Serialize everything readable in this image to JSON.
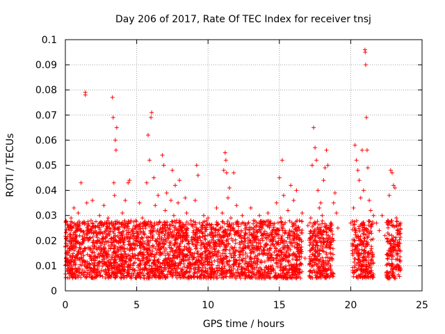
{
  "chart_data": {
    "type": "scatter",
    "title": "Day 206 of 2017, Rate Of TEC Index for receiver tnsj",
    "xlabel": "GPS time / hours",
    "ylabel": "ROTI / TECUs",
    "xlim": [
      0,
      25
    ],
    "ylim": [
      0,
      0.1
    ],
    "x_ticks": [
      "0",
      "5",
      "10",
      "15",
      "20",
      "25"
    ],
    "y_ticks": [
      "0",
      "0.01",
      "0.02",
      "0.03",
      "0.04",
      "0.05",
      "0.06",
      "0.07",
      "0.08",
      "0.09",
      "0.1"
    ],
    "grid": true,
    "marker": "+",
    "color": "#ff0000",
    "series": [
      {
        "points": [
          [
            0.05,
            0.021
          ],
          [
            0.1,
            0.012
          ],
          [
            0.2,
            0.025
          ],
          [
            0.3,
            0.017
          ],
          [
            0.4,
            0.029
          ],
          [
            0.5,
            0.014
          ],
          [
            0.6,
            0.033
          ],
          [
            0.7,
            0.019
          ],
          [
            0.8,
            0.024
          ],
          [
            0.9,
            0.031
          ],
          [
            1.0,
            0.022
          ],
          [
            1.1,
            0.043
          ],
          [
            1.2,
            0.027
          ],
          [
            1.3,
            0.016
          ],
          [
            1.4,
            0.079
          ],
          [
            1.4,
            0.078
          ],
          [
            1.5,
            0.035
          ],
          [
            1.6,
            0.02
          ],
          [
            1.8,
            0.028
          ],
          [
            1.9,
            0.036
          ],
          [
            2.0,
            0.023
          ],
          [
            2.1,
            0.013
          ],
          [
            2.3,
            0.026
          ],
          [
            2.4,
            0.03
          ],
          [
            2.5,
            0.018
          ],
          [
            2.7,
            0.034
          ],
          [
            2.8,
            0.021
          ],
          [
            2.9,
            0.015
          ],
          [
            3.0,
            0.029
          ],
          [
            3.1,
            0.025
          ],
          [
            3.3,
            0.077
          ],
          [
            3.35,
            0.069
          ],
          [
            3.4,
            0.043
          ],
          [
            3.45,
            0.038
          ],
          [
            3.5,
            0.06
          ],
          [
            3.55,
            0.056
          ],
          [
            3.6,
            0.065
          ],
          [
            3.7,
            0.027
          ],
          [
            3.8,
            0.02
          ],
          [
            4.0,
            0.031
          ],
          [
            4.1,
            0.017
          ],
          [
            4.2,
            0.036
          ],
          [
            4.3,
            0.024
          ],
          [
            4.4,
            0.043
          ],
          [
            4.5,
            0.044
          ],
          [
            4.6,
            0.028
          ],
          [
            4.8,
            0.022
          ],
          [
            4.9,
            0.014
          ],
          [
            5.0,
            0.026
          ],
          [
            5.2,
            0.035
          ],
          [
            5.3,
            0.019
          ],
          [
            5.4,
            0.029
          ],
          [
            5.5,
            0.023
          ],
          [
            5.7,
            0.043
          ],
          [
            5.8,
            0.062
          ],
          [
            5.9,
            0.052
          ],
          [
            6.0,
            0.069
          ],
          [
            6.05,
            0.071
          ],
          [
            6.2,
            0.045
          ],
          [
            6.3,
            0.034
          ],
          [
            6.4,
            0.027
          ],
          [
            6.5,
            0.038
          ],
          [
            6.6,
            0.021
          ],
          [
            6.7,
            0.015
          ],
          [
            6.8,
            0.054
          ],
          [
            6.9,
            0.05
          ],
          [
            7.0,
            0.032
          ],
          [
            7.1,
            0.039
          ],
          [
            7.2,
            0.025
          ],
          [
            7.3,
            0.018
          ],
          [
            7.4,
            0.036
          ],
          [
            7.5,
            0.048
          ],
          [
            7.6,
            0.03
          ],
          [
            7.7,
            0.042
          ],
          [
            7.8,
            0.028
          ],
          [
            7.9,
            0.035
          ],
          [
            8.0,
            0.044
          ],
          [
            8.1,
            0.026
          ],
          [
            8.2,
            0.022
          ],
          [
            8.4,
            0.037
          ],
          [
            8.5,
            0.031
          ],
          [
            8.6,
            0.019
          ],
          [
            8.8,
            0.028
          ],
          [
            9.0,
            0.024
          ],
          [
            9.1,
            0.036
          ],
          [
            9.2,
            0.05
          ],
          [
            9.3,
            0.046
          ],
          [
            9.4,
            0.027
          ],
          [
            9.5,
            0.018
          ],
          [
            9.7,
            0.03
          ],
          [
            9.8,
            0.022
          ],
          [
            10.0,
            0.029
          ],
          [
            10.2,
            0.017
          ],
          [
            10.4,
            0.025
          ],
          [
            10.6,
            0.033
          ],
          [
            10.8,
            0.02
          ],
          [
            11.0,
            0.031
          ],
          [
            11.1,
            0.048
          ],
          [
            11.2,
            0.055
          ],
          [
            11.25,
            0.052
          ],
          [
            11.3,
            0.047
          ],
          [
            11.4,
            0.037
          ],
          [
            11.5,
            0.041
          ],
          [
            11.6,
            0.029
          ],
          [
            11.8,
            0.047
          ],
          [
            12.0,
            0.034
          ],
          [
            12.2,
            0.022
          ],
          [
            12.4,
            0.03
          ],
          [
            12.6,
            0.026
          ],
          [
            12.8,
            0.019
          ],
          [
            13.0,
            0.033
          ],
          [
            13.2,
            0.028
          ],
          [
            13.4,
            0.021
          ],
          [
            13.6,
            0.03
          ],
          [
            13.8,
            0.025
          ],
          [
            14.0,
            0.018
          ],
          [
            14.2,
            0.031
          ],
          [
            14.4,
            0.027
          ],
          [
            14.6,
            0.021
          ],
          [
            14.8,
            0.035
          ],
          [
            15.0,
            0.045
          ],
          [
            15.1,
            0.029
          ],
          [
            15.2,
            0.052
          ],
          [
            15.3,
            0.038
          ],
          [
            15.4,
            0.024
          ],
          [
            15.6,
            0.032
          ],
          [
            15.8,
            0.042
          ],
          [
            16.0,
            0.036
          ],
          [
            16.2,
            0.04
          ],
          [
            16.4,
            0.028
          ],
          [
            16.6,
            0.031
          ],
          [
            16.8,
            0.013
          ],
          [
            17.0,
            0.026
          ],
          [
            17.2,
            0.029
          ],
          [
            17.3,
            0.05
          ],
          [
            17.4,
            0.065
          ],
          [
            17.5,
            0.057
          ],
          [
            17.6,
            0.052
          ],
          [
            17.7,
            0.04
          ],
          [
            17.8,
            0.033
          ],
          [
            17.9,
            0.035
          ],
          [
            18.0,
            0.03
          ],
          [
            18.1,
            0.044
          ],
          [
            18.2,
            0.049
          ],
          [
            18.3,
            0.056
          ],
          [
            18.4,
            0.05
          ],
          [
            18.6,
            0.027
          ],
          [
            18.8,
            0.035
          ],
          [
            18.9,
            0.039
          ],
          [
            19.0,
            0.031
          ],
          [
            19.1,
            0.025
          ],
          [
            20.0,
            0.027
          ],
          [
            20.1,
            0.016
          ],
          [
            20.2,
            0.033
          ],
          [
            20.3,
            0.058
          ],
          [
            20.4,
            0.052
          ],
          [
            20.5,
            0.048
          ],
          [
            20.6,
            0.044
          ],
          [
            20.7,
            0.037
          ],
          [
            20.8,
            0.056
          ],
          [
            20.9,
            0.04
          ],
          [
            21.0,
            0.096
          ],
          [
            21.02,
            0.095
          ],
          [
            21.05,
            0.09
          ],
          [
            21.1,
            0.069
          ],
          [
            21.15,
            0.056
          ],
          [
            21.2,
            0.049
          ],
          [
            21.3,
            0.036
          ],
          [
            21.4,
            0.032
          ],
          [
            21.6,
            0.03
          ],
          [
            21.8,
            0.027
          ],
          [
            22.0,
            0.024
          ],
          [
            22.2,
            0.03
          ],
          [
            22.4,
            0.022
          ],
          [
            22.6,
            0.028
          ],
          [
            22.7,
            0.038
          ],
          [
            22.8,
            0.048
          ],
          [
            22.9,
            0.047
          ],
          [
            23.0,
            0.042
          ],
          [
            23.1,
            0.041
          ],
          [
            23.2,
            0.029
          ],
          [
            23.3,
            0.024
          ],
          [
            23.4,
            0.019
          ]
        ]
      }
    ],
    "dense_band": {
      "x_ranges": [
        [
          0,
          16.6
        ],
        [
          17.1,
          18.8
        ],
        [
          20.1,
          21.6
        ],
        [
          22.5,
          23.5
        ]
      ],
      "y_min": 0.005,
      "y_max": 0.028
    }
  }
}
